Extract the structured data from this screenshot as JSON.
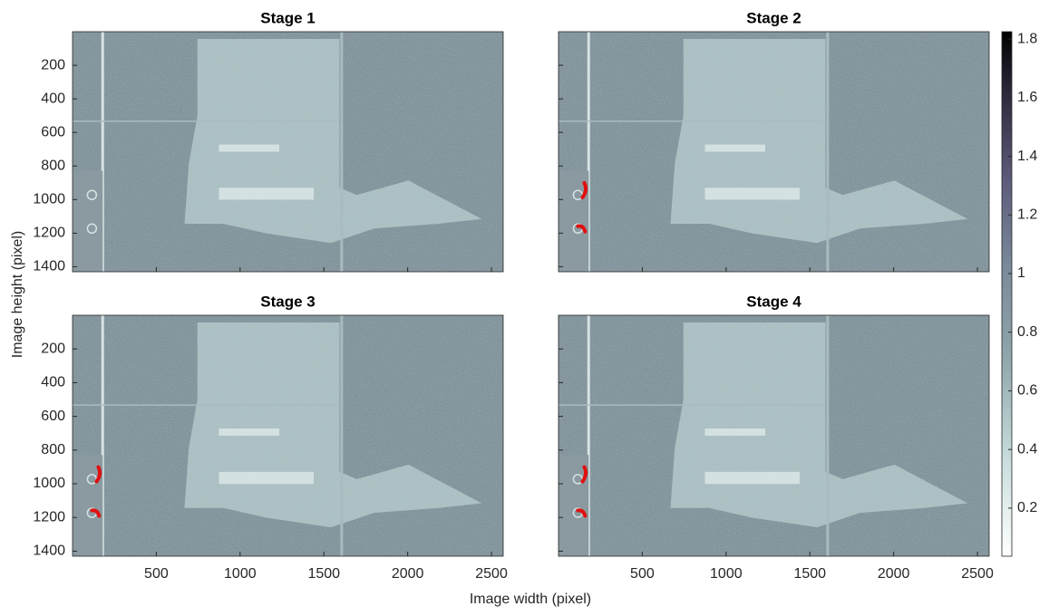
{
  "chart_data": [
    {
      "type": "image",
      "title": "Stage 1"
    },
    {
      "type": "image",
      "title": "Stage 2"
    },
    {
      "type": "image",
      "title": "Stage 3"
    },
    {
      "type": "image",
      "title": "Stage 4"
    }
  ],
  "axes": {
    "xlabel": "Image width (pixel)",
    "ylabel": "Image height (pixel)",
    "xlim": [
      0,
      2570
    ],
    "ylim": [
      0,
      1430
    ],
    "xticks": [
      500,
      1000,
      1500,
      2000,
      2500
    ],
    "yticks": [
      200,
      400,
      600,
      800,
      1000,
      1200,
      1400
    ]
  },
  "colorbar": {
    "clim": [
      0.036,
      1.825
    ],
    "ticks": [
      0.2,
      0.4,
      0.6,
      0.8,
      1,
      1.2,
      1.4,
      1.6,
      1.8
    ]
  }
}
